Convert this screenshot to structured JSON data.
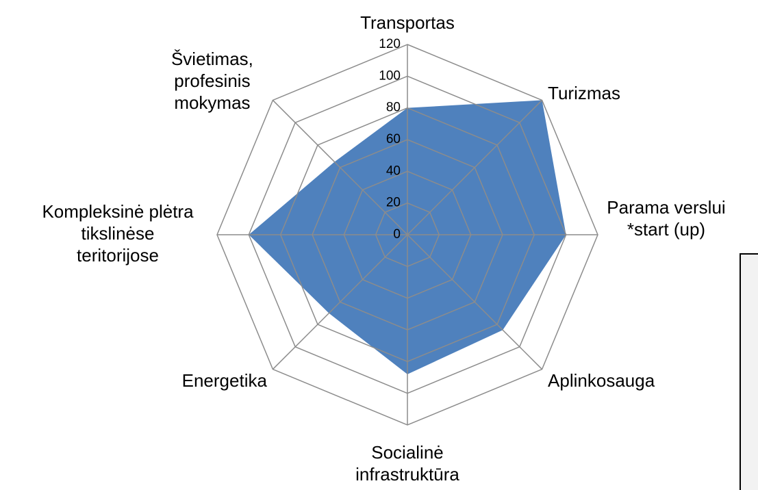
{
  "chart_data": {
    "type": "radar",
    "categories": [
      "Transportas",
      "Turizmas",
      "Parama verslui\n*start (up)",
      "Aplinkosauga",
      "Socialinė\ninfrastruktūra",
      "Energetika",
      "Kompleksinė plėtra\ntikslinėse\nteritorijose",
      "Švietimas,\nprofesinis\nmokymas"
    ],
    "series": [
      {
        "color": "#4f81bd",
        "values": [
          80,
          120,
          100,
          85,
          88,
          70,
          100,
          65
        ]
      }
    ],
    "ylim": [
      0,
      120
    ],
    "yticks": [
      0,
      20,
      40,
      60,
      80,
      100,
      120
    ],
    "grid": true
  }
}
